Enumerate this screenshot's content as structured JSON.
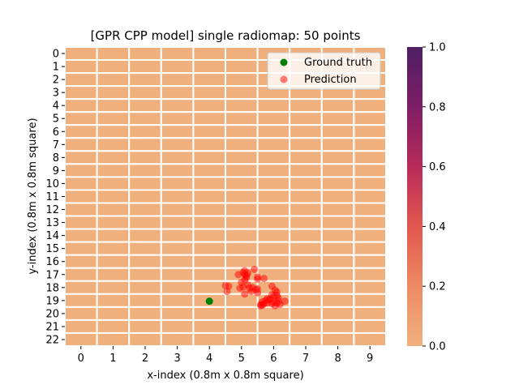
{
  "chart_data": {
    "type": "heatmap",
    "title": "[GPR CPP model] single radiomap: 50 points",
    "xlabel": "x-index (0.8m x 0.8m square)",
    "ylabel": "y-index (0.8m x 0.8m square)",
    "x_categories": [
      "0",
      "1",
      "2",
      "3",
      "4",
      "5",
      "6",
      "7",
      "8",
      "9"
    ],
    "y_categories": [
      "0",
      "1",
      "2",
      "3",
      "4",
      "5",
      "6",
      "7",
      "8",
      "9",
      "10",
      "11",
      "12",
      "13",
      "14",
      "15",
      "16",
      "17",
      "18",
      "19",
      "20",
      "21",
      "22"
    ],
    "heatmap_value": 0.0,
    "colorbar": {
      "range": [
        0.0,
        1.0
      ],
      "ticks": [
        "0.0",
        "0.2",
        "0.4",
        "0.6",
        "0.8",
        "1.0"
      ]
    },
    "grid_lines": true,
    "legend": {
      "placement": "top-right",
      "entries": [
        "Ground truth",
        "Prediction"
      ]
    },
    "series": [
      {
        "name": "Ground truth",
        "color": "#008000",
        "points": [
          [
            4.0,
            19.05
          ]
        ]
      },
      {
        "name": "Prediction",
        "color": "#ff0000",
        "points": [
          [
            5.05,
            16.85
          ],
          [
            5.1,
            16.7
          ],
          [
            5.2,
            16.9
          ],
          [
            5.4,
            16.6
          ],
          [
            4.9,
            17.0
          ],
          [
            5.15,
            17.1
          ],
          [
            5.5,
            17.2
          ],
          [
            5.7,
            17.3
          ],
          [
            5.0,
            17.6
          ],
          [
            5.1,
            17.4
          ],
          [
            5.2,
            17.8
          ],
          [
            5.35,
            18.0
          ],
          [
            5.5,
            18.1
          ],
          [
            4.6,
            17.9
          ],
          [
            4.5,
            17.85
          ],
          [
            4.55,
            18.3
          ],
          [
            5.1,
            18.5
          ],
          [
            5.5,
            18.4
          ],
          [
            5.95,
            17.9
          ],
          [
            6.05,
            18.2
          ],
          [
            6.1,
            18.6
          ],
          [
            5.9,
            18.9
          ],
          [
            5.6,
            19.3
          ],
          [
            5.65,
            19.1
          ],
          [
            5.75,
            19.0
          ],
          [
            5.6,
            19.4
          ],
          [
            6.0,
            19.1
          ],
          [
            6.05,
            19.4
          ],
          [
            6.15,
            18.8
          ],
          [
            6.35,
            19.05
          ],
          [
            6.0,
            18.7
          ],
          [
            5.85,
            18.95
          ],
          [
            5.8,
            19.2
          ],
          [
            5.7,
            19.25
          ],
          [
            6.1,
            19.2
          ],
          [
            6.15,
            19.05
          ],
          [
            5.3,
            18.3
          ],
          [
            5.45,
            18.15
          ],
          [
            4.95,
            18.05
          ],
          [
            5.05,
            17.95
          ],
          [
            5.15,
            17.25
          ],
          [
            5.5,
            17.35
          ],
          [
            5.95,
            18.55
          ],
          [
            6.1,
            18.35
          ],
          [
            5.95,
            19.25
          ],
          [
            5.65,
            19.35
          ],
          [
            5.8,
            18.85
          ],
          [
            5.25,
            18.05
          ],
          [
            5.1,
            17.0
          ],
          [
            6.2,
            19.3
          ]
        ]
      }
    ]
  }
}
